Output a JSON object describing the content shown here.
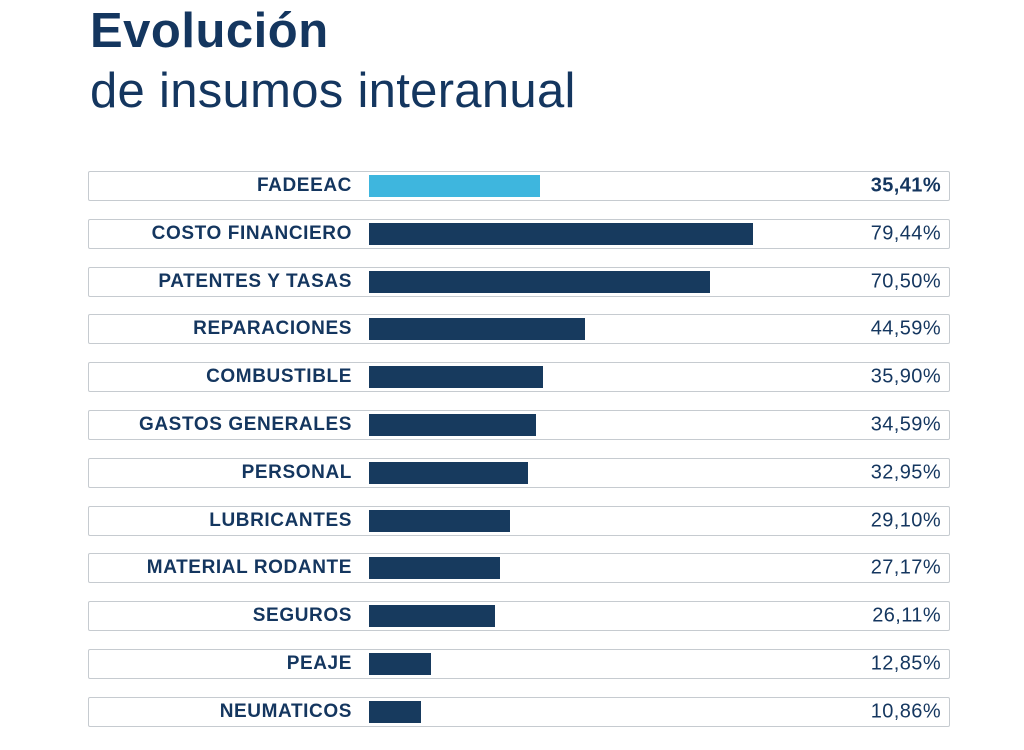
{
  "header": {
    "title_line1": "Evolución",
    "title_line2": "de insumos interanual"
  },
  "colors": {
    "text_navy": "#14365F",
    "bar_navy": "#173A5E",
    "bar_highlight_blue": "#3EB6DE",
    "row_border": "#C6CBD0",
    "background": "#FFFFFF"
  },
  "chart_data": {
    "type": "bar",
    "orientation": "horizontal",
    "title": "Evolución de insumos interanual",
    "xlabel": "",
    "ylabel": "",
    "xlim": [
      0,
      120
    ],
    "grid": false,
    "legend": false,
    "value_format": "percent-comma-decimal",
    "categories": [
      "FADEEAC",
      "COSTO FINANCIERO",
      "PATENTES Y TASAS",
      "REPARACIONES",
      "COMBUSTIBLE",
      "GASTOS GENERALES",
      "PERSONAL",
      "LUBRICANTES",
      "MATERIAL RODANTE",
      "SEGUROS",
      "PEAJE",
      "NEUMATICOS"
    ],
    "values": [
      35.41,
      79.44,
      70.5,
      44.59,
      35.9,
      34.59,
      32.95,
      29.1,
      27.17,
      26.11,
      12.85,
      10.86
    ],
    "items": [
      {
        "label": "FADEEAC",
        "value": 35.41,
        "value_label": "35,41%",
        "highlight": true
      },
      {
        "label": "COSTO FINANCIERO",
        "value": 79.44,
        "value_label": "79,44%",
        "highlight": false
      },
      {
        "label": "PATENTES Y TASAS",
        "value": 70.5,
        "value_label": "70,50%",
        "highlight": false
      },
      {
        "label": "REPARACIONES",
        "value": 44.59,
        "value_label": "44,59%",
        "highlight": false
      },
      {
        "label": "COMBUSTIBLE",
        "value": 35.9,
        "value_label": "35,90%",
        "highlight": false
      },
      {
        "label": "GASTOS GENERALES",
        "value": 34.59,
        "value_label": "34,59%",
        "highlight": false
      },
      {
        "label": "PERSONAL",
        "value": 32.95,
        "value_label": "32,95%",
        "highlight": false
      },
      {
        "label": "LUBRICANTES",
        "value": 29.1,
        "value_label": "29,10%",
        "highlight": false
      },
      {
        "label": "MATERIAL RODANTE",
        "value": 27.17,
        "value_label": "27,17%",
        "highlight": false
      },
      {
        "label": "SEGUROS",
        "value": 26.11,
        "value_label": "26,11%",
        "highlight": false
      },
      {
        "label": "PEAJE",
        "value": 12.85,
        "value_label": "12,85%",
        "highlight": false
      },
      {
        "label": "NEUMATICOS",
        "value": 10.86,
        "value_label": "10,86%",
        "highlight": false
      }
    ]
  }
}
